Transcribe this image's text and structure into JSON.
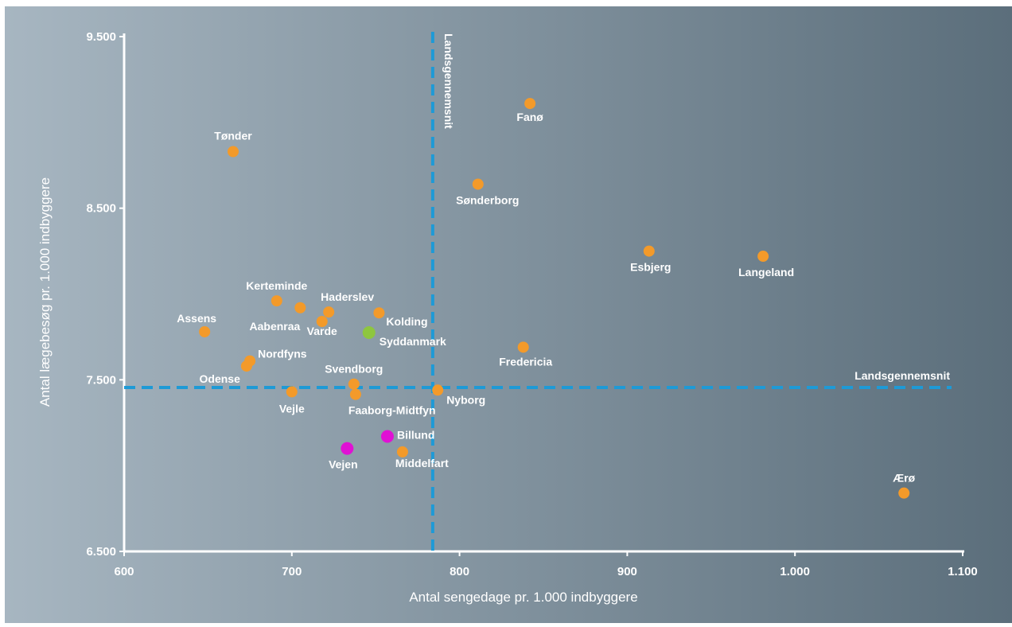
{
  "colors": {
    "bg_dark": "#5b6e7b",
    "bg_light": "#a7b6c1",
    "axis": "#ffffff",
    "reference_line": "#1e9ad6",
    "municipality": "#f39a2a",
    "region": "#8ec63f",
    "highlight": "#e011d4"
  },
  "chart_data": {
    "type": "scatter",
    "xlabel": "Antal sengedage pr. 1.000 indbyggere",
    "ylabel": "Antal lægebesøg pr. 1.000 indbyggere",
    "xlim": [
      600,
      1100
    ],
    "ylim": [
      6500,
      9500
    ],
    "x_ticks": [
      600,
      700,
      800,
      900,
      1000,
      1100
    ],
    "x_tick_labels": [
      "600",
      "700",
      "800",
      "900",
      "1.000",
      "1.100"
    ],
    "y_ticks": [
      6500,
      7500,
      8500,
      9500
    ],
    "y_tick_labels": [
      "6.500",
      "7.500",
      "8.500",
      "9.500"
    ],
    "grid": false,
    "reference_lines": {
      "vertical": {
        "x": 784,
        "label": "Landsgennemsnit"
      },
      "horizontal": {
        "y": 7455,
        "label": "Landsgennemsnit"
      }
    },
    "points": [
      {
        "label": "Tønder",
        "x": 665,
        "y": 8830,
        "group": "municipality"
      },
      {
        "label": "Fanø",
        "x": 842,
        "y": 9110,
        "group": "municipality"
      },
      {
        "label": "Sønderborg",
        "x": 811,
        "y": 8640,
        "group": "municipality"
      },
      {
        "label": "Esbjerg",
        "x": 913,
        "y": 8250,
        "group": "municipality"
      },
      {
        "label": "Langeland",
        "x": 981,
        "y": 8220,
        "group": "municipality"
      },
      {
        "label": "Kerteminde",
        "x": 691,
        "y": 7960,
        "group": "municipality"
      },
      {
        "label": "Aabenraa",
        "x": 705,
        "y": 7920,
        "group": "municipality"
      },
      {
        "label": "Haderslev",
        "x": 722,
        "y": 7895,
        "group": "municipality"
      },
      {
        "label": "Varde",
        "x": 718,
        "y": 7840,
        "group": "municipality"
      },
      {
        "label": "Kolding",
        "x": 752,
        "y": 7890,
        "group": "municipality"
      },
      {
        "label": "Syddanmark",
        "x": 746,
        "y": 7775,
        "group": "region"
      },
      {
        "label": "Assens",
        "x": 648,
        "y": 7780,
        "group": "municipality"
      },
      {
        "label": "Fredericia",
        "x": 838,
        "y": 7690,
        "group": "municipality"
      },
      {
        "label": "Nordfyns",
        "x": 675,
        "y": 7610,
        "group": "municipality"
      },
      {
        "label": "Odense",
        "x": 673,
        "y": 7580,
        "group": "municipality"
      },
      {
        "label": "Svendborg",
        "x": 737,
        "y": 7475,
        "group": "municipality"
      },
      {
        "label": "Faaborg-Midtfyn",
        "x": 738,
        "y": 7415,
        "group": "municipality"
      },
      {
        "label": "Vejle",
        "x": 700,
        "y": 7430,
        "group": "municipality"
      },
      {
        "label": "Nyborg",
        "x": 787,
        "y": 7440,
        "group": "municipality"
      },
      {
        "label": "Billund",
        "x": 757,
        "y": 7170,
        "group": "highlight"
      },
      {
        "label": "Vejen",
        "x": 733,
        "y": 7100,
        "group": "highlight"
      },
      {
        "label": "Middelfart",
        "x": 766,
        "y": 7080,
        "group": "municipality"
      },
      {
        "label": "Ærø",
        "x": 1065,
        "y": 6840,
        "group": "municipality"
      }
    ]
  }
}
